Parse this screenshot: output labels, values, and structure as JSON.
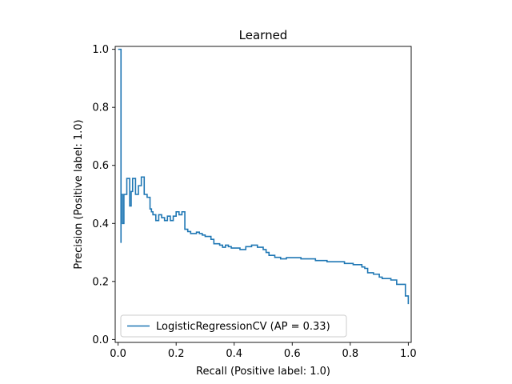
{
  "chart_data": {
    "type": "line",
    "title": "Learned",
    "xlabel": "Recall (Positive label: 1.0)",
    "ylabel": "Precision (Positive label: 1.0)",
    "xlim": [
      -0.01,
      1.01
    ],
    "ylim": [
      -0.01,
      1.01
    ],
    "xticks": [
      "0.0",
      "0.2",
      "0.4",
      "0.6",
      "0.8",
      "1.0"
    ],
    "yticks": [
      "0.0",
      "0.2",
      "0.4",
      "0.6",
      "0.8",
      "1.0"
    ],
    "grid": false,
    "legend_position": "lower-left",
    "series": [
      {
        "name": "LogisticRegressionCV (AP = 0.33)",
        "color": "#1f77b4",
        "drawstyle": "steps-post",
        "points": [
          [
            1.0,
            0.122
          ],
          [
            1.0,
            0.15
          ],
          [
            0.99,
            0.15
          ],
          [
            0.99,
            0.19
          ],
          [
            0.96,
            0.19
          ],
          [
            0.96,
            0.205
          ],
          [
            0.94,
            0.205
          ],
          [
            0.94,
            0.21
          ],
          [
            0.91,
            0.21
          ],
          [
            0.91,
            0.215
          ],
          [
            0.9,
            0.215
          ],
          [
            0.9,
            0.225
          ],
          [
            0.88,
            0.225
          ],
          [
            0.88,
            0.23
          ],
          [
            0.86,
            0.23
          ],
          [
            0.86,
            0.245
          ],
          [
            0.85,
            0.245
          ],
          [
            0.85,
            0.25
          ],
          [
            0.84,
            0.25
          ],
          [
            0.84,
            0.258
          ],
          [
            0.81,
            0.258
          ],
          [
            0.81,
            0.262
          ],
          [
            0.78,
            0.262
          ],
          [
            0.78,
            0.268
          ],
          [
            0.72,
            0.268
          ],
          [
            0.72,
            0.272
          ],
          [
            0.68,
            0.272
          ],
          [
            0.68,
            0.278
          ],
          [
            0.63,
            0.278
          ],
          [
            0.63,
            0.282
          ],
          [
            0.58,
            0.282
          ],
          [
            0.58,
            0.278
          ],
          [
            0.56,
            0.278
          ],
          [
            0.56,
            0.283
          ],
          [
            0.54,
            0.283
          ],
          [
            0.54,
            0.29
          ],
          [
            0.52,
            0.29
          ],
          [
            0.52,
            0.3
          ],
          [
            0.51,
            0.3
          ],
          [
            0.51,
            0.31
          ],
          [
            0.5,
            0.31
          ],
          [
            0.5,
            0.318
          ],
          [
            0.48,
            0.318
          ],
          [
            0.48,
            0.325
          ],
          [
            0.46,
            0.325
          ],
          [
            0.46,
            0.32
          ],
          [
            0.44,
            0.32
          ],
          [
            0.44,
            0.31
          ],
          [
            0.42,
            0.31
          ],
          [
            0.42,
            0.315
          ],
          [
            0.39,
            0.315
          ],
          [
            0.39,
            0.32
          ],
          [
            0.38,
            0.32
          ],
          [
            0.38,
            0.325
          ],
          [
            0.37,
            0.325
          ],
          [
            0.37,
            0.318
          ],
          [
            0.36,
            0.318
          ],
          [
            0.36,
            0.325
          ],
          [
            0.35,
            0.325
          ],
          [
            0.35,
            0.33
          ],
          [
            0.33,
            0.33
          ],
          [
            0.33,
            0.345
          ],
          [
            0.32,
            0.345
          ],
          [
            0.32,
            0.355
          ],
          [
            0.3,
            0.355
          ],
          [
            0.3,
            0.36
          ],
          [
            0.29,
            0.36
          ],
          [
            0.29,
            0.365
          ],
          [
            0.28,
            0.365
          ],
          [
            0.28,
            0.37
          ],
          [
            0.27,
            0.37
          ],
          [
            0.27,
            0.365
          ],
          [
            0.25,
            0.365
          ],
          [
            0.25,
            0.372
          ],
          [
            0.24,
            0.372
          ],
          [
            0.24,
            0.38
          ],
          [
            0.23,
            0.38
          ],
          [
            0.23,
            0.4
          ],
          [
            0.23,
            0.42
          ],
          [
            0.23,
            0.44
          ],
          [
            0.22,
            0.44
          ],
          [
            0.22,
            0.43
          ],
          [
            0.21,
            0.43
          ],
          [
            0.21,
            0.44
          ],
          [
            0.2,
            0.44
          ],
          [
            0.2,
            0.425
          ],
          [
            0.19,
            0.425
          ],
          [
            0.19,
            0.41
          ],
          [
            0.18,
            0.41
          ],
          [
            0.18,
            0.425
          ],
          [
            0.17,
            0.425
          ],
          [
            0.17,
            0.41
          ],
          [
            0.16,
            0.41
          ],
          [
            0.16,
            0.42
          ],
          [
            0.15,
            0.42
          ],
          [
            0.15,
            0.43
          ],
          [
            0.14,
            0.43
          ],
          [
            0.14,
            0.41
          ],
          [
            0.13,
            0.41
          ],
          [
            0.13,
            0.43
          ],
          [
            0.12,
            0.43
          ],
          [
            0.12,
            0.44
          ],
          [
            0.115,
            0.44
          ],
          [
            0.115,
            0.45
          ],
          [
            0.11,
            0.45
          ],
          [
            0.11,
            0.49
          ],
          [
            0.1,
            0.49
          ],
          [
            0.1,
            0.5
          ],
          [
            0.09,
            0.5
          ],
          [
            0.09,
            0.56
          ],
          [
            0.08,
            0.56
          ],
          [
            0.08,
            0.53
          ],
          [
            0.07,
            0.53
          ],
          [
            0.07,
            0.5
          ],
          [
            0.06,
            0.5
          ],
          [
            0.06,
            0.555
          ],
          [
            0.05,
            0.555
          ],
          [
            0.05,
            0.51
          ],
          [
            0.045,
            0.51
          ],
          [
            0.045,
            0.46
          ],
          [
            0.04,
            0.46
          ],
          [
            0.04,
            0.555
          ],
          [
            0.03,
            0.555
          ],
          [
            0.03,
            0.5
          ],
          [
            0.02,
            0.5
          ],
          [
            0.02,
            0.4
          ],
          [
            0.015,
            0.4
          ],
          [
            0.015,
            0.5
          ],
          [
            0.01,
            0.5
          ],
          [
            0.01,
            0.333
          ],
          [
            0.01,
            1.0
          ],
          [
            0.0,
            1.0
          ]
        ]
      }
    ]
  }
}
